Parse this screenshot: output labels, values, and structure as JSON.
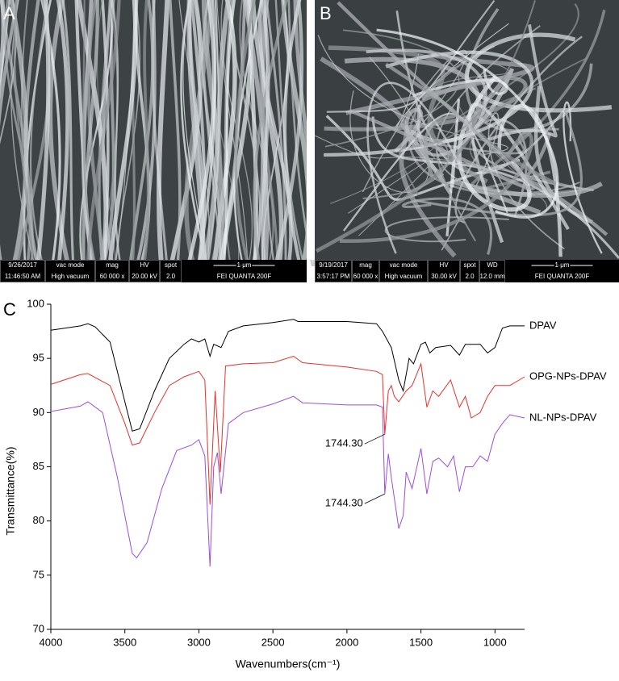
{
  "panels": {
    "a": {
      "letter": "A",
      "top": [
        "9/26/2017",
        "vac mode",
        "mag",
        "HV",
        "spot"
      ],
      "bottom": [
        "11:46:50 AM",
        "High vacuum",
        "60 000 x",
        "20.00 kV",
        "2.0"
      ],
      "scale": "1 μm",
      "maker": "FEI QUANTA 200F"
    },
    "b": {
      "letter": "B",
      "top": [
        "9/19/2017",
        "mag",
        "vac mode",
        "HV",
        "spot",
        "WD"
      ],
      "bottom": [
        "3:57:17 PM",
        "60 000 x",
        "High vacuum",
        "30.00 kV",
        "2.0",
        "12.0 mm"
      ],
      "scale": "1 μm",
      "maker": "FEI QUANTA 200F"
    }
  },
  "chart_data": {
    "type": "line",
    "letter": "C",
    "x_label": "Wavenumbers(cm⁻¹)",
    "y_label": "Transmittance(%)",
    "xlim": [
      4000,
      800
    ],
    "ylim": [
      70,
      100
    ],
    "xticks": [
      4000,
      3500,
      3000,
      2500,
      2000,
      1500,
      1000
    ],
    "yticks": [
      70,
      75,
      80,
      85,
      90,
      95,
      100
    ],
    "series": [
      {
        "name": "DPAV",
        "color": "#000000",
        "x": [
          4000,
          3800,
          3750,
          3700,
          3600,
          3500,
          3450,
          3400,
          3300,
          3200,
          3100,
          3050,
          3000,
          2960,
          2925,
          2900,
          2850,
          2800,
          2700,
          2500,
          2360,
          2330,
          2200,
          2000,
          1800,
          1760,
          1700,
          1650,
          1620,
          1580,
          1550,
          1500,
          1470,
          1440,
          1400,
          1300,
          1240,
          1200,
          1100,
          1050,
          1000,
          950,
          900,
          850,
          800
        ],
        "values": [
          97.6,
          98.0,
          98.2,
          97.9,
          96.5,
          91,
          88.3,
          88.5,
          92,
          95,
          96.3,
          96.8,
          96.5,
          96.8,
          95.2,
          96.3,
          96.0,
          97.5,
          98.0,
          98.3,
          98.6,
          98.4,
          98.4,
          98.4,
          98.2,
          97.5,
          96,
          93,
          92,
          95,
          94.5,
          96.3,
          96.5,
          95.5,
          96,
          96.2,
          95.3,
          96.3,
          96.3,
          95.5,
          96,
          97.8,
          98,
          98,
          98
        ]
      },
      {
        "name": "OPG-NPs-DPAV",
        "color": "#e8312a",
        "x": [
          4000,
          3800,
          3750,
          3600,
          3500,
          3450,
          3400,
          3300,
          3200,
          3100,
          3000,
          2960,
          2925,
          2890,
          2855,
          2820,
          2700,
          2500,
          2360,
          2300,
          2000,
          1800,
          1760,
          1744.3,
          1720,
          1700,
          1680,
          1650,
          1600,
          1560,
          1500,
          1460,
          1420,
          1380,
          1300,
          1240,
          1200,
          1160,
          1100,
          1050,
          1000,
          900,
          800
        ],
        "values": [
          92.6,
          93.5,
          93.6,
          92.5,
          89,
          87,
          87.2,
          90,
          92.5,
          93.3,
          93.8,
          93.0,
          81.5,
          92,
          84.5,
          94.3,
          94.5,
          94.6,
          95.2,
          94.6,
          94.2,
          93.8,
          93.5,
          88.0,
          92,
          92.5,
          91.5,
          91,
          92,
          92.5,
          94.5,
          90.5,
          92,
          91.5,
          93,
          90.5,
          91.5,
          89.5,
          90,
          91.5,
          92.5,
          92.5,
          93.3
        ]
      },
      {
        "name": "NL-NPs-DPAV",
        "color": "#9b4fd8",
        "x": [
          4000,
          3800,
          3750,
          3650,
          3550,
          3450,
          3420,
          3350,
          3250,
          3150,
          3050,
          3000,
          2960,
          2925,
          2900,
          2875,
          2850,
          2800,
          2700,
          2500,
          2360,
          2300,
          2000,
          1800,
          1760,
          1744.3,
          1720,
          1700,
          1650,
          1620,
          1600,
          1560,
          1500,
          1460,
          1420,
          1380,
          1320,
          1280,
          1240,
          1200,
          1150,
          1100,
          1050,
          1000,
          950,
          900,
          800
        ],
        "values": [
          90.1,
          90.6,
          91.0,
          90,
          84,
          77,
          76.6,
          78,
          83,
          86.5,
          87,
          87.5,
          86,
          75.8,
          85,
          86.3,
          82.5,
          89,
          90,
          90.8,
          91.5,
          90.9,
          90.7,
          90.7,
          90.5,
          82.5,
          86.2,
          84,
          79.3,
          80.5,
          84.5,
          83,
          86.7,
          82.5,
          85.5,
          85.8,
          85,
          86,
          82.7,
          85,
          85,
          86,
          85.5,
          88,
          89,
          89.8,
          89.5
        ]
      }
    ],
    "annotations": [
      {
        "label": "1744.30",
        "x": 1744.3,
        "y": 88.0
      },
      {
        "label": "1744.30",
        "x": 1744.3,
        "y": 82.5
      }
    ]
  }
}
